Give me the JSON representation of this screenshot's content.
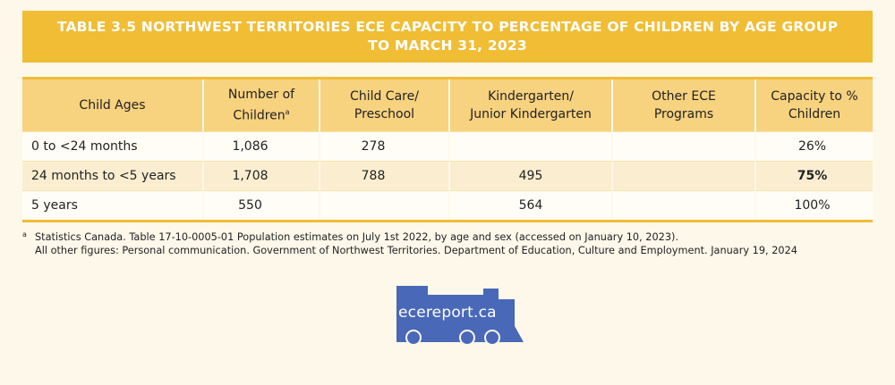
{
  "title": {
    "line1": "TABLE 3.5 NORTHWEST TERRITORIES ECE CAPACITY TO PERCENTAGE OF CHILDREN BY AGE GROUP",
    "line2": "TO MARCH 31, 2023"
  },
  "table": {
    "headers": {
      "age": "Child Ages",
      "num_line1": "Number of",
      "num_line2": "Children",
      "num_footnote": "a",
      "cc_line1": "Child Care/",
      "cc_line2": "Preschool",
      "kg_line1": "Kindergarten/",
      "kg_line2": "Junior Kindergarten",
      "oth_line1": "Other ECE",
      "oth_line2": "Programs",
      "cap_line1": "Capacity to %",
      "cap_line2": "Children"
    },
    "rows": [
      {
        "age": "0 to <24 months",
        "num": "1,086",
        "cc": "278",
        "kg": "",
        "oth": "",
        "cap": "26%"
      },
      {
        "age": "24 months to <5 years",
        "num": "1,708",
        "cc": "788",
        "kg": "495",
        "oth": "",
        "cap": "75%"
      },
      {
        "age": "5 years",
        "num": "550",
        "cc": "",
        "kg": "564",
        "oth": "",
        "cap": "100%"
      }
    ]
  },
  "footnotes": {
    "mark": "a",
    "line1": "Statistics Canada. Table 17-10-0005-01 Population estimates on July 1st 2022, by age and sex (accessed on January 10, 2023).",
    "line2": "All other figures: Personal communication. Government of Northwest Territories. Department of Education, Culture and Employment. January 19, 2024"
  },
  "logo": {
    "text": "ecereport.ca",
    "color": "#4a68b8"
  },
  "colors": {
    "title_bg": "#f0bd35",
    "header_bg": "#f7d27f",
    "stripe_bg": "#fbeed0",
    "page_bg": "#fdf8ea"
  }
}
